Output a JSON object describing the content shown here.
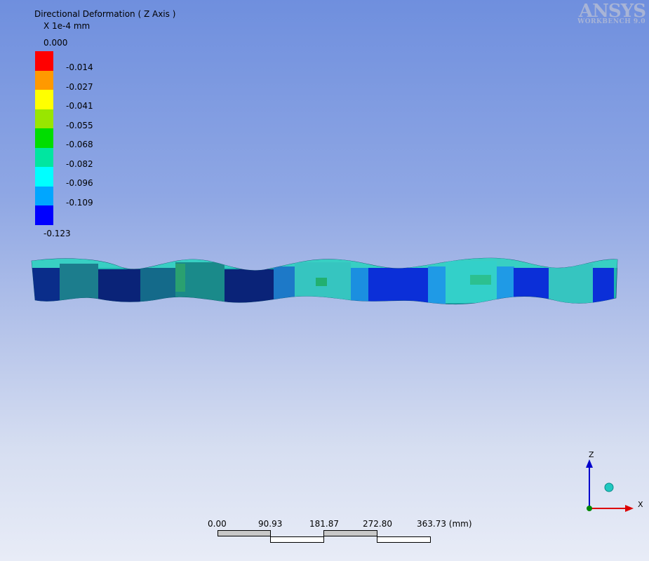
{
  "legend": {
    "title": "Directional Deformation ( Z Axis )",
    "units": "X 1e-4 mm",
    "levels": [
      {
        "label": "0.000",
        "color": "#ff0000"
      },
      {
        "label": "-0.014",
        "color": "#ff9900"
      },
      {
        "label": "-0.027",
        "color": "#ffff00"
      },
      {
        "label": "-0.041",
        "color": "#99e600"
      },
      {
        "label": "-0.055",
        "color": "#00dd00"
      },
      {
        "label": "-0.068",
        "color": "#00e6a0"
      },
      {
        "label": "-0.082",
        "color": "#00ffff"
      },
      {
        "label": "-0.096",
        "color": "#00a6ff"
      },
      {
        "label": "-0.109",
        "color": "#0000ff"
      },
      {
        "label": "-0.123"
      }
    ]
  },
  "branding": {
    "name": "ANSYS",
    "product": "WORKBENCH 9.0"
  },
  "triad": {
    "z": "Z",
    "x": "X"
  },
  "scale": {
    "ticks": [
      "0.00",
      "90.93",
      "181.87",
      "272.80",
      "363.73 (mm)"
    ]
  }
}
